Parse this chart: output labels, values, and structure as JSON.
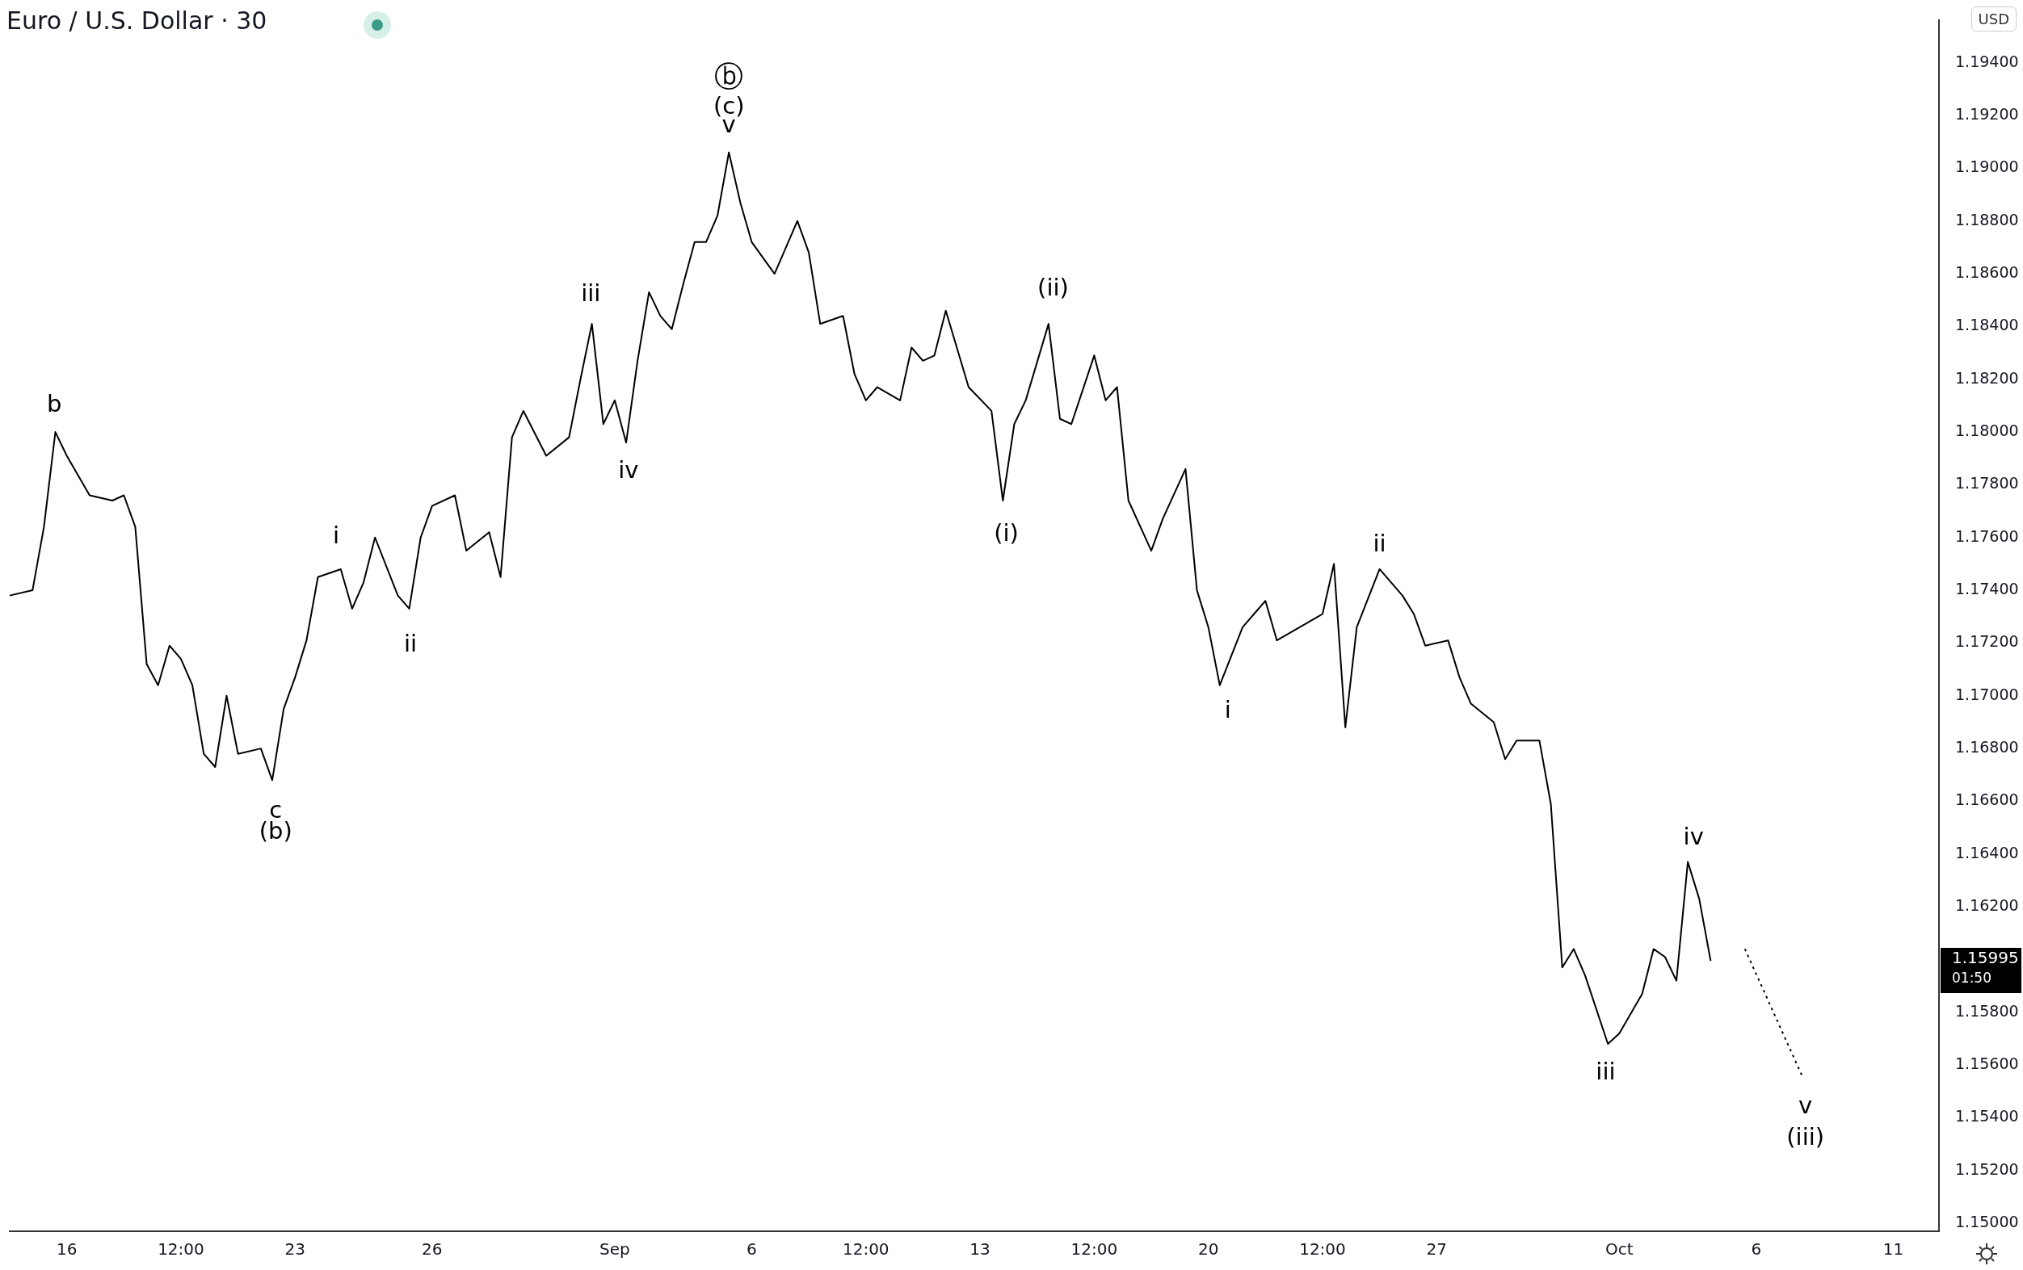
{
  "chart_data": {
    "type": "line",
    "title": "Euro / U.S. Dollar · 30",
    "categories": [
      null,
      null,
      null,
      null,
      null,
      "16",
      null,
      null,
      null,
      null,
      null,
      null,
      null,
      null,
      null,
      "12:00",
      null,
      null,
      null,
      null,
      null,
      null,
      null,
      null,
      null,
      "23",
      null,
      null,
      null,
      null,
      null,
      null,
      null,
      null,
      null,
      null,
      null,
      "26",
      null,
      null,
      null,
      null,
      null,
      null,
      null,
      null,
      null,
      null,
      null,
      null,
      null,
      null,
      null,
      "Sep",
      null,
      null,
      null,
      null,
      null,
      null,
      null,
      null,
      null,
      null,
      null,
      "6",
      null,
      null,
      null,
      null,
      null,
      null,
      null,
      null,
      null,
      "12:00",
      null,
      null,
      null,
      null,
      null,
      null,
      null,
      null,
      null,
      "13",
      null,
      null,
      null,
      null,
      null,
      null,
      null,
      null,
      null,
      "12:00",
      null,
      null,
      null,
      null,
      null,
      null,
      null,
      null,
      null,
      "20",
      null,
      null,
      null,
      null,
      null,
      null,
      null,
      null,
      null,
      "12:00",
      null,
      null,
      null,
      null,
      null,
      null,
      null,
      null,
      null,
      "27",
      null,
      null,
      null,
      null,
      null,
      null,
      null,
      null,
      null,
      null,
      null,
      null,
      null,
      null,
      null,
      "Oct",
      null,
      null,
      null,
      null,
      null,
      null,
      null,
      null,
      null,
      null,
      null,
      "6",
      null,
      null,
      null,
      null,
      null,
      null,
      null,
      null,
      null,
      null,
      null,
      "11",
      null,
      null,
      null,
      null
    ],
    "ylim": [
      1.1497,
      1.1956
    ],
    "yticks": [
      {
        "value": 1.15,
        "label": "1.15000"
      },
      {
        "value": 1.152,
        "label": "1.15200"
      },
      {
        "value": 1.154,
        "label": "1.15400"
      },
      {
        "value": 1.156,
        "label": "1.15600"
      },
      {
        "value": 1.158,
        "label": "1.15800"
      },
      {
        "value": 1.162,
        "label": "1.16200"
      },
      {
        "value": 1.164,
        "label": "1.16400"
      },
      {
        "value": 1.166,
        "label": "1.16600"
      },
      {
        "value": 1.168,
        "label": "1.16800"
      },
      {
        "value": 1.17,
        "label": "1.17000"
      },
      {
        "value": 1.172,
        "label": "1.17200"
      },
      {
        "value": 1.174,
        "label": "1.17400"
      },
      {
        "value": 1.176,
        "label": "1.17600"
      },
      {
        "value": 1.178,
        "label": "1.17800"
      },
      {
        "value": 1.18,
        "label": "1.18000"
      },
      {
        "value": 1.182,
        "label": "1.18200"
      },
      {
        "value": 1.184,
        "label": "1.18400"
      },
      {
        "value": 1.186,
        "label": "1.18600"
      },
      {
        "value": 1.188,
        "label": "1.18800"
      },
      {
        "value": 1.19,
        "label": "1.19000"
      },
      {
        "value": 1.192,
        "label": "1.19200"
      },
      {
        "value": 1.194,
        "label": "1.19400"
      }
    ],
    "marker": "none",
    "series": [
      {
        "color": "#000000",
        "line_style": "solid",
        "values": [
          1.1738,
          null,
          1.174,
          1.1764,
          1.18,
          1.1791,
          null,
          1.1776,
          null,
          1.1774,
          1.1776,
          1.1764,
          1.1712,
          1.1704,
          1.1719,
          1.1714,
          1.1704,
          1.1678,
          1.1673,
          1.17,
          1.1678,
          null,
          1.168,
          1.1668,
          1.1695,
          1.1707,
          1.1721,
          1.1745,
          null,
          1.1748,
          1.1733,
          1.1743,
          1.176,
          null,
          1.1738,
          1.1733,
          1.176,
          1.1772,
          null,
          1.1776,
          1.1755,
          null,
          1.1762,
          1.1745,
          1.1798,
          1.1808,
          null,
          1.1791,
          null,
          1.1798,
          1.182,
          1.1841,
          1.1803,
          1.1812,
          1.1796,
          1.1827,
          1.1853,
          1.1844,
          1.1839,
          1.1856,
          1.1872,
          1.1872,
          1.1882,
          1.1906,
          1.1887,
          1.1872,
          null,
          1.186,
          1.187,
          1.188,
          1.1868,
          1.1841,
          null,
          1.1844,
          1.1822,
          1.1812,
          1.1817,
          null,
          1.1812,
          1.1832,
          1.1827,
          1.1829,
          1.1846,
          null,
          1.1817,
          null,
          1.1808,
          1.1774,
          1.1803,
          1.1812,
          null,
          1.1841,
          1.1805,
          1.1803,
          null,
          1.1829,
          1.1812,
          1.1817,
          1.1774,
          null,
          1.1755,
          1.1767,
          null,
          1.1786,
          1.174,
          1.1726,
          1.1704,
          null,
          1.1726,
          1.1731,
          1.1736,
          1.1721,
          null,
          1.1726,
          null,
          1.1731,
          1.175,
          1.1688,
          1.1726,
          null,
          1.1748,
          null,
          1.1738,
          1.1731,
          1.1719,
          null,
          1.1721,
          1.1707,
          1.1697,
          null,
          1.169,
          1.1676,
          1.1683,
          null,
          1.1683,
          1.1659,
          1.1597,
          1.1604,
          1.1594,
          null,
          1.1568,
          1.1572,
          null,
          1.1587,
          1.1604,
          1.1601,
          1.1592,
          1.1637,
          1.1623,
          1.15995,
          null,
          null,
          null,
          null,
          null,
          null,
          null,
          null,
          null,
          null,
          null,
          null,
          null,
          null,
          null,
          null,
          null,
          null,
          null,
          null
        ]
      },
      {
        "color": "#000000",
        "line_style": "dotted",
        "values": [
          null,
          null,
          null,
          null,
          null,
          null,
          null,
          null,
          null,
          null,
          null,
          null,
          null,
          null,
          null,
          null,
          null,
          null,
          null,
          null,
          null,
          null,
          null,
          null,
          null,
          null,
          null,
          null,
          null,
          null,
          null,
          null,
          null,
          null,
          null,
          null,
          null,
          null,
          null,
          null,
          null,
          null,
          null,
          null,
          null,
          null,
          null,
          null,
          null,
          null,
          null,
          null,
          null,
          null,
          null,
          null,
          null,
          null,
          null,
          null,
          null,
          null,
          null,
          null,
          null,
          null,
          null,
          null,
          null,
          null,
          null,
          null,
          null,
          null,
          null,
          null,
          null,
          null,
          null,
          null,
          null,
          null,
          null,
          null,
          null,
          null,
          null,
          null,
          null,
          null,
          null,
          null,
          null,
          null,
          null,
          null,
          null,
          null,
          null,
          null,
          null,
          null,
          null,
          null,
          null,
          null,
          null,
          null,
          null,
          null,
          null,
          null,
          null,
          null,
          null,
          null,
          null,
          null,
          null,
          null,
          null,
          null,
          null,
          null,
          null,
          null,
          null,
          null,
          null,
          null,
          null,
          null,
          null,
          null,
          null,
          null,
          null,
          null,
          null,
          null,
          null,
          null,
          null,
          null,
          null,
          null,
          null,
          null,
          null,
          null,
          null,
          null,
          1.1604,
          null,
          null,
          null,
          null,
          1.1556,
          null,
          null,
          null,
          null,
          null,
          null,
          null,
          null,
          null,
          null,
          null,
          null
        ]
      }
    ],
    "annotations": [
      "b",
      "c",
      "(b)",
      "i",
      "ii",
      "iii",
      "iv",
      "ⓑ",
      "(c)",
      "v",
      "(i)",
      "(ii)",
      "i",
      "ii",
      "iii",
      "iv",
      "v",
      "(iii)",
      "1.15995",
      "01:50",
      "USD"
    ]
  }
}
